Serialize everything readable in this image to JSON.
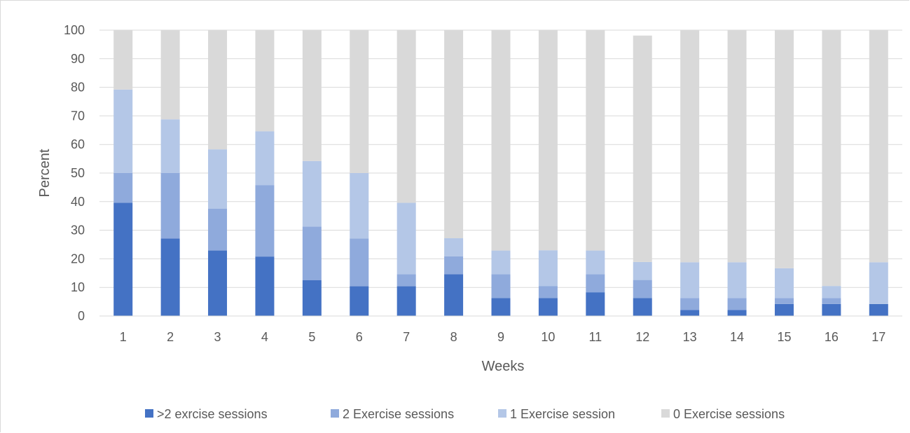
{
  "chart_data": {
    "type": "bar",
    "stacked": true,
    "title": "",
    "xlabel": "Weeks",
    "ylabel": "Percent",
    "ylim": [
      0,
      100
    ],
    "yticks": [
      0,
      10,
      20,
      30,
      40,
      50,
      60,
      70,
      80,
      90,
      100
    ],
    "grid": true,
    "legend_position": "bottom",
    "categories": [
      "1",
      "2",
      "3",
      "4",
      "5",
      "6",
      "7",
      "8",
      "9",
      "10",
      "11",
      "12",
      "13",
      "14",
      "15",
      "16",
      "17"
    ],
    "series": [
      {
        "name": ">2 exrcise sessions",
        "color": "#4472c4",
        "values": [
          39.6,
          27.1,
          22.9,
          20.8,
          12.5,
          10.4,
          10.4,
          14.6,
          6.3,
          6.3,
          8.3,
          6.3,
          2.1,
          2.1,
          4.2,
          4.2,
          4.2
        ]
      },
      {
        "name": "2 Exercise sessions",
        "color": "#8faadc",
        "values": [
          10.4,
          22.9,
          14.6,
          25.0,
          18.8,
          16.7,
          4.2,
          6.3,
          8.3,
          4.2,
          6.3,
          6.3,
          4.2,
          4.2,
          2.1,
          2.1,
          0
        ]
      },
      {
        "name": "1 Exercise session",
        "color": "#b4c7e7",
        "values": [
          29.2,
          18.8,
          20.8,
          18.8,
          22.9,
          22.9,
          25.0,
          6.3,
          8.3,
          12.5,
          8.3,
          6.3,
          12.5,
          12.5,
          10.4,
          4.2,
          14.6
        ]
      },
      {
        "name": "0 Exercise sessions",
        "color": "#d9d9d9",
        "values": [
          20.8,
          31.3,
          41.7,
          35.4,
          45.8,
          50.0,
          60.4,
          72.9,
          77.1,
          77.1,
          77.1,
          79.2,
          81.3,
          81.3,
          83.3,
          89.6,
          81.3
        ]
      }
    ]
  }
}
